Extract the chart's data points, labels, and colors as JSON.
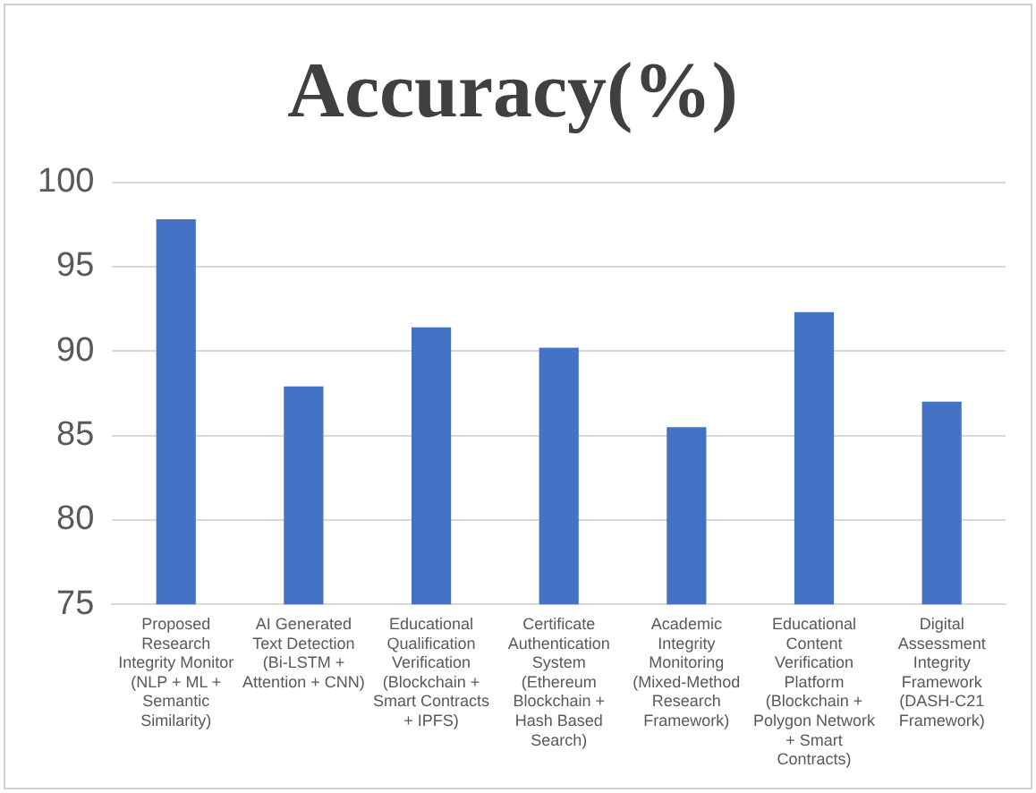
{
  "chart_data": {
    "type": "bar",
    "title": "Accuracy(%)",
    "categories": [
      "Proposed Research Integrity Monitor (NLP + ML + Semantic Similarity)",
      "AI Generated Text Detection (Bi-LSTM + Attention + CNN)",
      "Educational Qualification Verification (Blockchain + Smart Contracts + IPFS)",
      "Certificate Authentication System (Ethereum Blockchain + Hash Based Search)",
      "Academic Integrity Monitoring (Mixed-Method Research Framework)",
      "Educational Content Verification Platform (Blockchain + Polygon Network + Smart Contracts)",
      "Digital Assessment Integrity Framework (DASH-C21 Framework)"
    ],
    "values": [
      97.8,
      87.9,
      91.4,
      90.2,
      85.5,
      92.3,
      87.0
    ],
    "color": "#4472c4",
    "ylim": [
      75,
      100
    ],
    "yticks": [
      75,
      80,
      85,
      90,
      95,
      100
    ],
    "grid": "y"
  }
}
